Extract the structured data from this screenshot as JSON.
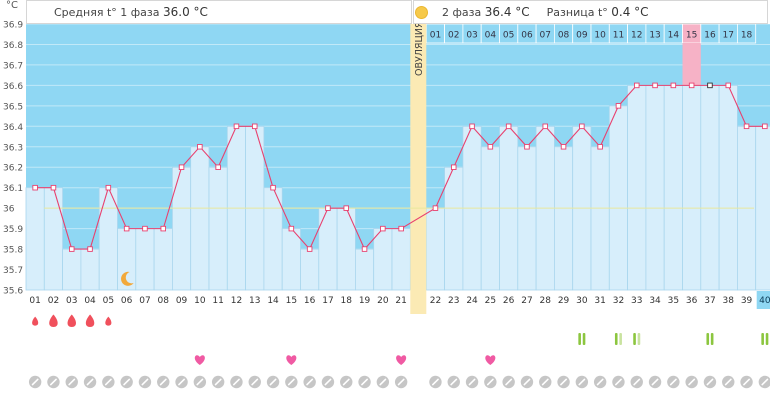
{
  "unit": "°C",
  "header": {
    "phase1_label": "Средняя t° 1 фаза",
    "phase1_value": "36.0 °C",
    "phase2_label": "2 фаза",
    "phase2_value": "36.4 °C",
    "diff_label": "Разница t°",
    "diff_value": "0.4 °C"
  },
  "ovulation_label": "ОВУЛЯЦИЯ",
  "colors": {
    "phase_bg": "#8fd7f3",
    "bar_fill": "#d7eefb",
    "bar_stroke": "#a9d6ee",
    "line": "#e8416f",
    "ovulation": "#fbeab4",
    "highlight_day": "#f6b2c6",
    "coverline": "#e9e89c",
    "drop": "#f0505c",
    "heart": "#f05aa3",
    "pill": "#8cc63f",
    "pill_light": "#c9e3a0",
    "circle": "#c6c6c6",
    "current_day": "#8fd7f3"
  },
  "chart_data": {
    "type": "line",
    "title": "",
    "xlabel": "",
    "ylabel": "°C",
    "ylim": [
      35.6,
      36.9
    ],
    "y_ticks": [
      "35.6",
      "35.7",
      "35.8",
      "35.9",
      "36",
      "36.1",
      "36.2",
      "36.3",
      "36.4",
      "36.5",
      "36.6",
      "36.7",
      "36.8",
      "36.9"
    ],
    "x": [
      "01",
      "02",
      "03",
      "04",
      "05",
      "06",
      "07",
      "08",
      "09",
      "10",
      "11",
      "12",
      "13",
      "14",
      "15",
      "16",
      "17",
      "18",
      "19",
      "20",
      "21",
      "22",
      "23",
      "24",
      "25",
      "26",
      "27",
      "28",
      "29",
      "30",
      "31",
      "32",
      "33",
      "34",
      "35",
      "36",
      "37",
      "38",
      "39",
      "40"
    ],
    "series": [
      {
        "values": [
          36.1,
          36.1,
          35.8,
          35.8,
          36.1,
          35.9,
          35.9,
          35.9,
          36.2,
          36.3,
          36.2,
          36.4,
          36.4,
          36.1,
          35.9,
          35.8,
          36.0,
          36.0,
          35.8,
          35.9,
          35.9,
          36.0,
          36.2,
          36.4,
          36.3,
          36.4,
          36.3,
          36.4,
          36.3,
          36.4,
          36.3,
          36.5,
          36.6,
          36.6,
          36.6,
          36.6,
          36.6,
          36.6,
          36.4,
          36.4
        ]
      }
    ],
    "coverline": 36.0,
    "ovulation_after_day_index": 21,
    "post_ovulation_days": [
      "01",
      "02",
      "03",
      "04",
      "05",
      "06",
      "07",
      "08",
      "09",
      "10",
      "11",
      "12",
      "13",
      "14",
      "15",
      "16",
      "17",
      "18"
    ],
    "highlighted_post_day": "15",
    "current_day": "40",
    "markers": {
      "drops": [
        1,
        2,
        3,
        4,
        5
      ],
      "drop_sizes": [
        1,
        2,
        2,
        2,
        1
      ],
      "moon": [
        6
      ],
      "hearts": [
        10,
        15,
        21,
        25
      ],
      "pills": [
        30,
        32,
        33,
        37,
        40
      ],
      "pills_light": [
        32,
        33
      ]
    }
  }
}
